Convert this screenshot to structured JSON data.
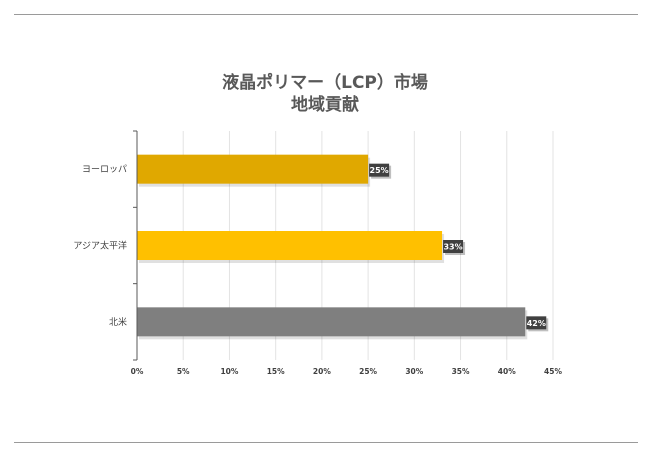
{
  "chart_data": {
    "type": "bar",
    "orientation": "horizontal",
    "title": [
      "液晶ポリマー（LCP）市場",
      "地域貢献"
    ],
    "categories": [
      "ヨーロッパ",
      "アジア太平洋",
      "北米"
    ],
    "values": [
      25,
      33,
      42
    ],
    "data_labels": [
      "25%",
      "33%",
      "42%"
    ],
    "colors": [
      "#E0A800",
      "#FFC000",
      "#7F7F7F"
    ],
    "xlim": [
      0,
      45
    ],
    "x_ticks": [
      0,
      5,
      10,
      15,
      20,
      25,
      30,
      35,
      40,
      45
    ],
    "x_tick_labels": [
      "0%",
      "5%",
      "10%",
      "15%",
      "20%",
      "25%",
      "30%",
      "35%",
      "40%",
      "45%"
    ],
    "grid": true,
    "legend": "none"
  }
}
